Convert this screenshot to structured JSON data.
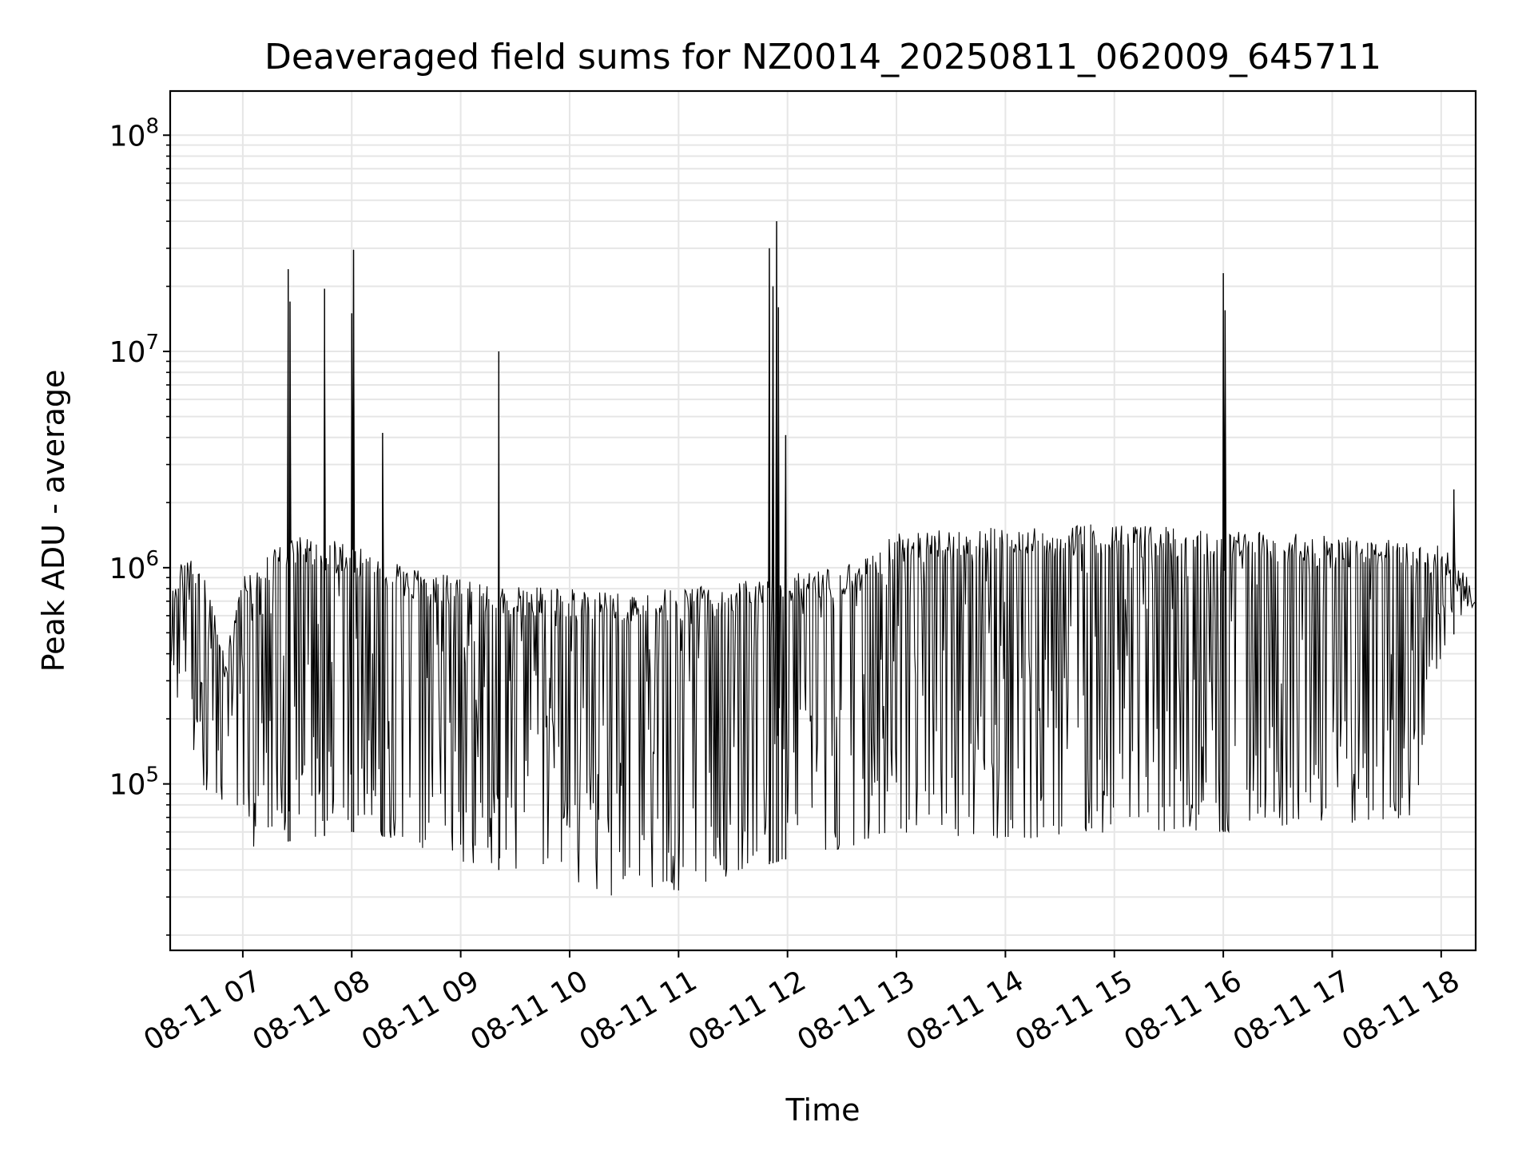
{
  "chart_data": {
    "type": "line",
    "title": "Deaveraged field sums for NZ0014_20250811_062009_645711",
    "xlabel": "Time",
    "ylabel": "Peak ADU - average",
    "yscale": "log",
    "xlim": [
      "2025-08-11 06:20",
      "2025-08-11 18:19"
    ],
    "ylim": [
      17000,
      160000000
    ],
    "grid": true,
    "line_color": "#000000",
    "x_ticks": [
      "08-11 07",
      "08-11 08",
      "08-11 09",
      "08-11 10",
      "08-11 11",
      "08-11 12",
      "08-11 13",
      "08-11 14",
      "08-11 15",
      "08-11 16",
      "08-11 17",
      "08-11 18"
    ],
    "x_tick_rotation": 30,
    "y_ticks": [
      {
        "value": 100000,
        "base": "10",
        "exp": "5"
      },
      {
        "value": 1000000,
        "base": "10",
        "exp": "6"
      },
      {
        "value": 10000000,
        "base": "10",
        "exp": "7"
      },
      {
        "value": 100000000,
        "base": "10",
        "exp": "8"
      }
    ],
    "series": [
      {
        "upper_envelope": [
          [
            "2025-08-11 06:20",
            900000
          ],
          [
            "2025-08-11 06:30",
            1200000
          ],
          [
            "2025-08-11 06:40",
            900000
          ],
          [
            "2025-08-11 06:50",
            400000
          ],
          [
            "2025-08-11 07:00",
            1000000
          ],
          [
            "2025-08-11 07:30",
            1400000
          ],
          [
            "2025-08-11 08:00",
            1300000
          ],
          [
            "2025-08-11 08:30",
            1000000
          ],
          [
            "2025-08-11 09:00",
            900000
          ],
          [
            "2025-08-11 09:30",
            850000
          ],
          [
            "2025-08-11 10:00",
            800000
          ],
          [
            "2025-08-11 10:30",
            780000
          ],
          [
            "2025-08-11 11:00",
            800000
          ],
          [
            "2025-08-11 11:30",
            850000
          ],
          [
            "2025-08-11 12:00",
            950000
          ],
          [
            "2025-08-11 12:30",
            1000000
          ],
          [
            "2025-08-11 13:00",
            1450000
          ],
          [
            "2025-08-11 14:00",
            1550000
          ],
          [
            "2025-08-11 15:00",
            1600000
          ],
          [
            "2025-08-11 16:00",
            1500000
          ],
          [
            "2025-08-11 17:00",
            1400000
          ],
          [
            "2025-08-11 18:00",
            1300000
          ],
          [
            "2025-08-11 18:19",
            800000
          ]
        ],
        "lower_envelope": [
          [
            "2025-08-11 06:20",
            300000
          ],
          [
            "2025-08-11 06:40",
            90000
          ],
          [
            "2025-08-11 07:00",
            50000
          ],
          [
            "2025-08-11 07:30",
            55000
          ],
          [
            "2025-08-11 08:00",
            60000
          ],
          [
            "2025-08-11 08:30",
            55000
          ],
          [
            "2025-08-11 09:00",
            40000
          ],
          [
            "2025-08-11 09:30",
            40000
          ],
          [
            "2025-08-11 10:00",
            32000
          ],
          [
            "2025-08-11 10:30",
            30000
          ],
          [
            "2025-08-11 11:00",
            32000
          ],
          [
            "2025-08-11 11:30",
            38000
          ],
          [
            "2025-08-11 12:00",
            45000
          ],
          [
            "2025-08-11 12:30",
            50000
          ],
          [
            "2025-08-11 13:00",
            60000
          ],
          [
            "2025-08-11 14:00",
            55000
          ],
          [
            "2025-08-11 15:00",
            60000
          ],
          [
            "2025-08-11 16:00",
            60000
          ],
          [
            "2025-08-11 17:00",
            65000
          ],
          [
            "2025-08-11 17:45",
            70000
          ],
          [
            "2025-08-11 18:00",
            400000
          ],
          [
            "2025-08-11 18:19",
            700000
          ]
        ],
        "spikes": [
          [
            "2025-08-11 07:25",
            24000000
          ],
          [
            "2025-08-11 07:26",
            17000000
          ],
          [
            "2025-08-11 07:45",
            19500000
          ],
          [
            "2025-08-11 08:01",
            29500000
          ],
          [
            "2025-08-11 08:00",
            15000000
          ],
          [
            "2025-08-11 08:17",
            4200000
          ],
          [
            "2025-08-11 09:21",
            10000000
          ],
          [
            "2025-08-11 11:50",
            30000000
          ],
          [
            "2025-08-11 11:52",
            20000000
          ],
          [
            "2025-08-11 11:54",
            40000000
          ],
          [
            "2025-08-11 11:55",
            16000000
          ],
          [
            "2025-08-11 11:59",
            4100000
          ],
          [
            "2025-08-11 16:00",
            23000000
          ],
          [
            "2025-08-11 16:01",
            15500000
          ],
          [
            "2025-08-11 18:07",
            2300000
          ]
        ]
      }
    ]
  }
}
